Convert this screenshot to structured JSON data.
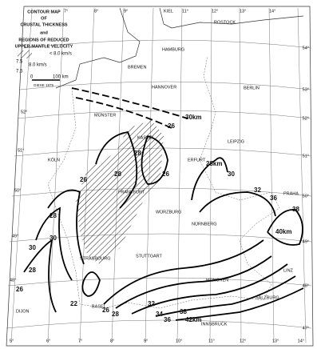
{
  "legend": {
    "title": [
      "CONTOUR MAP",
      "OF",
      "CRUSTAL THICKNESS",
      "and",
      "REGIONS OF REDUCED",
      "UPPER-MANTLE VELOCITY"
    ],
    "items": [
      "< 8.0 km/s",
      "7.5",
      "8.0 km/s",
      "7.5"
    ],
    "scale": [
      "0",
      "100 km"
    ],
    "credit": "GIESE 1975"
  },
  "cities": [
    "KIEL",
    "ROSTOCK",
    "HAMBURG",
    "BREMEN",
    "HANNOVER",
    "BERLIN",
    "MÜNSTER",
    "KASSEL",
    "LEIPZIG",
    "KÖLN",
    "ERFURT",
    "PRAHA",
    "FRANKFURT",
    "WÜRZBURG",
    "NÜRNBERG",
    "STUTTGART",
    "STRASBOURG",
    "MÜNCHEN",
    "LINZ",
    "SALZBURG",
    "BASEL",
    "INNSBRUCK",
    "DIJON"
  ],
  "contour_labels": [
    "30km",
    "26",
    "28km",
    "30",
    "32",
    "36",
    "38",
    "40km",
    "28",
    "28",
    "26",
    "26",
    "28",
    "30",
    "30",
    "28",
    "26",
    "22",
    "26",
    "28",
    "32",
    "34",
    "36",
    "38",
    "42km"
  ],
  "graticule": {
    "top": [
      "7°",
      "8°",
      "9°",
      "11°",
      "12°",
      "13°",
      "14°"
    ],
    "bottom": [
      "5°",
      "6°",
      "7°",
      "8°",
      "9°",
      "10°",
      "11°",
      "12°",
      "13°",
      "14°"
    ],
    "right": [
      "54°",
      "53°",
      "52°",
      "51°",
      "50°",
      "49°",
      "48°",
      "47°"
    ],
    "left": [
      "52°",
      "51°",
      "50°",
      "49°",
      "48°"
    ]
  }
}
